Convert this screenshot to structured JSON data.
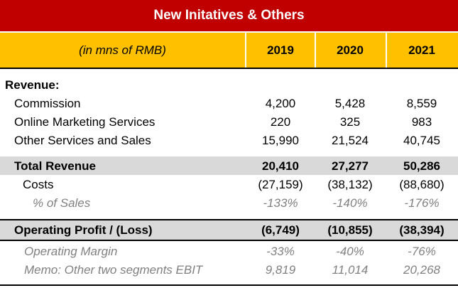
{
  "title": "New Initatives & Others",
  "header": {
    "units": "(in mns of RMB)",
    "years": [
      "2019",
      "2020",
      "2021"
    ]
  },
  "revenue_heading": "Revenue:",
  "rows": {
    "commission": {
      "label": "Commission",
      "values": [
        "4,200",
        "5,428",
        "8,559"
      ]
    },
    "online_marketing": {
      "label": "Online Marketing Services",
      "values": [
        "220",
        "325",
        "983"
      ]
    },
    "other_services": {
      "label": "Other Services and Sales",
      "values": [
        "15,990",
        "21,524",
        "40,745"
      ]
    },
    "total_revenue": {
      "label": "Total Revenue",
      "values": [
        "20,410",
        "27,277",
        "50,286"
      ]
    },
    "costs": {
      "label": "Costs",
      "values": [
        "(27,159)",
        "(38,132)",
        "(88,680)"
      ]
    },
    "pct_sales": {
      "label": "% of Sales",
      "values": [
        "-133%",
        "-140%",
        "-176%"
      ]
    },
    "operating_profit": {
      "label": "Operating Profit / (Loss)",
      "values": [
        "(6,749)",
        "(10,855)",
        "(38,394)"
      ]
    },
    "operating_margin": {
      "label": "Operating Margin",
      "values": [
        "-33%",
        "-40%",
        "-76%"
      ]
    },
    "memo_ebit": {
      "label": "Memo: Other two segments EBIT",
      "values": [
        "9,819",
        "11,014",
        "20,268"
      ]
    }
  },
  "colors": {
    "title_bg": "#c00000",
    "header_bg": "#ffc000",
    "shade": "#d9d9d9",
    "muted_text": "#808080"
  }
}
